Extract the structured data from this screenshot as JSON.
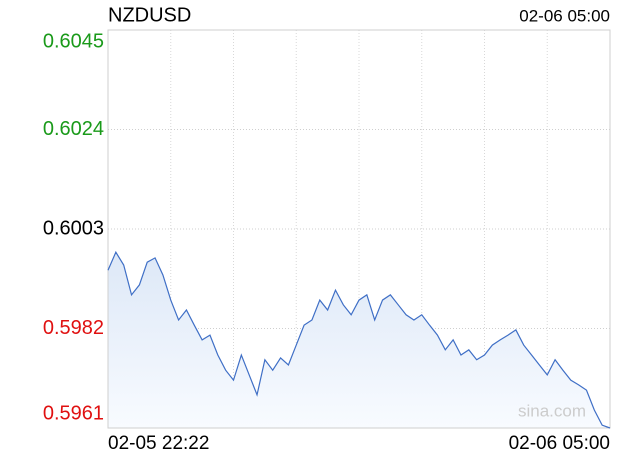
{
  "chart_data": {
    "type": "line",
    "title": "NZDUSD",
    "subtitle": "02-06 05:00",
    "watermark": "sina.com",
    "categories": [
      "02-05 22:22",
      null,
      null,
      null,
      null,
      null,
      null,
      null,
      null,
      null,
      null,
      null,
      null,
      null,
      null,
      null,
      null,
      null,
      null,
      null,
      null,
      null,
      null,
      null,
      null,
      null,
      null,
      null,
      null,
      null,
      null,
      null,
      null,
      null,
      null,
      null,
      null,
      null,
      null,
      null,
      null,
      null,
      null,
      null,
      null,
      null,
      null,
      null,
      null,
      null,
      null,
      null,
      null,
      null,
      null,
      null,
      null,
      null,
      null,
      null,
      null,
      null,
      null,
      null,
      "02-06 05:00"
    ],
    "values": [
      0.59943,
      0.59981,
      0.59954,
      0.59891,
      0.59912,
      0.5996,
      0.59969,
      0.59933,
      0.5988,
      0.59838,
      0.59859,
      0.59827,
      0.59796,
      0.59806,
      0.59764,
      0.59732,
      0.59711,
      0.59764,
      0.59722,
      0.5968,
      0.59754,
      0.59732,
      0.59758,
      0.59743,
      0.59785,
      0.59827,
      0.59838,
      0.5988,
      0.59859,
      0.59901,
      0.5987,
      0.59849,
      0.5988,
      0.59891,
      0.59838,
      0.5988,
      0.59891,
      0.5987,
      0.59849,
      0.59838,
      0.59849,
      0.59827,
      0.59806,
      0.59775,
      0.59796,
      0.59764,
      0.59775,
      0.59754,
      0.59764,
      0.59785,
      0.59796,
      0.59806,
      0.59817,
      0.59785,
      0.59764,
      0.59743,
      0.59722,
      0.59754,
      0.59732,
      0.59711,
      0.59701,
      0.5969,
      0.59648,
      0.59616,
      0.5961
    ],
    "color": "#3f6fc6",
    "ylim": [
      0.5961,
      0.6045
    ],
    "yticks": [
      0.6045,
      0.6024,
      0.6003,
      0.5982,
      0.5961
    ],
    "ytick_colors": [
      "#1a9a1a",
      "#1a9a1a",
      "#000000",
      "#e01010",
      "#e01010"
    ],
    "grid": true
  }
}
